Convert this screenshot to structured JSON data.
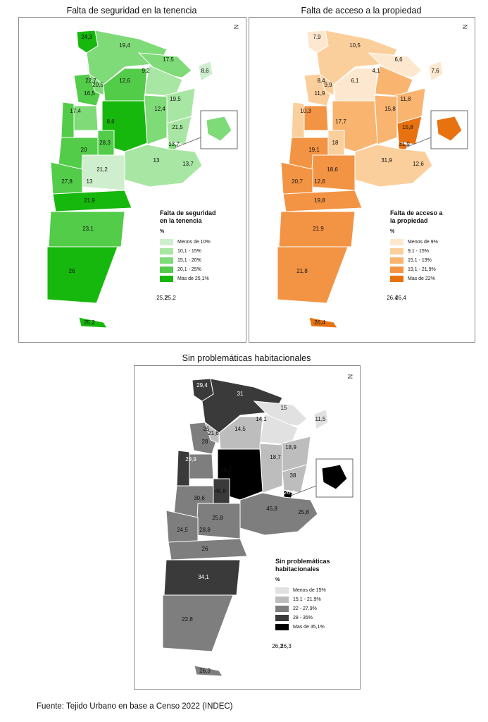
{
  "footer": "Fuente: Tejido Urbano en base a Censo 2022 (INDEC)",
  "north_mark": "N",
  "maps": [
    {
      "title": "Falta de seguridad en la tenencia",
      "legend_title": "Falta de seguridad\nen la tenencia",
      "unit": "%",
      "legend": [
        {
          "label": "Menos de 10%",
          "color": "#cfeecd"
        },
        {
          "label": "10,1 - 15%",
          "color": "#a8e6a3"
        },
        {
          "label": "15,1 - 20%",
          "color": "#7fda78"
        },
        {
          "label": "20,1 - 25%",
          "color": "#52cc49"
        },
        {
          "label": "Mas de 25,1%",
          "color": "#17b80d"
        }
      ],
      "values": [
        "24,3",
        "19,4",
        "17,5",
        "8,6",
        "22,7",
        "20,5",
        "9,2",
        "12,6",
        "16,5",
        "19,5",
        "17,4",
        "12,4",
        "8,6",
        "21,5",
        "28,3",
        "20",
        "13,7",
        "13",
        "13,7",
        "21,2",
        "13",
        "27,8",
        "21,9",
        "23,1",
        "26",
        "25,2",
        "25,2",
        "25,2"
      ]
    },
    {
      "title": "Falta de acceso a la propiedad",
      "legend_title": "Falta de acceso a\nla propiedad",
      "unit": "%",
      "legend": [
        {
          "label": "Menos de 9%",
          "color": "#fde8cf"
        },
        {
          "label": "9,1 - 15%",
          "color": "#fbcf9c"
        },
        {
          "label": "15,1 - 19%",
          "color": "#f9b470"
        },
        {
          "label": "19,1 - 21,9%",
          "color": "#f39444"
        },
        {
          "label": "Mas de 22%",
          "color": "#e8720f"
        }
      ],
      "values": [
        "7,9",
        "10,5",
        "6,6",
        "7,6",
        "8,4",
        "9,9",
        "4,1",
        "6,1",
        "11,9",
        "11,8",
        "10,3",
        "15,8",
        "17,7",
        "15,8",
        "18",
        "19,1",
        "31,9",
        "31,9",
        "12,6",
        "18,6",
        "12,6",
        "20,7",
        "19,8",
        "21,9",
        "21,8",
        "26,4",
        "26,4",
        "26,4"
      ]
    },
    {
      "title": "Sin problemáticas habitacionales",
      "legend_title": "Sin problemáticas\nhabitacionales",
      "unit": "%",
      "legend": [
        {
          "label": "Menos de 15%",
          "color": "#e1e1e1"
        },
        {
          "label": "15,1 - 21,9%",
          "color": "#bdbdbd"
        },
        {
          "label": "22 - 27,9%",
          "color": "#7e7e7e"
        },
        {
          "label": "28 - 35%",
          "color": "#3a3a3a"
        },
        {
          "label": "Mas de 35,1%",
          "color": "#000000"
        }
      ],
      "values": [
        "29,4",
        "31",
        "15",
        "11,5",
        "25",
        "21,6",
        "14,1",
        "14,5",
        "28",
        "18,9",
        "29,9",
        "18,7",
        "26,2",
        "38",
        "45,8",
        "30,6",
        "26,4",
        "45,8",
        "25,8",
        "25,8",
        "28,8",
        "24,5",
        "26",
        "34,1",
        "22,8",
        "26,3",
        "26,3",
        "26,3"
      ]
    }
  ]
}
